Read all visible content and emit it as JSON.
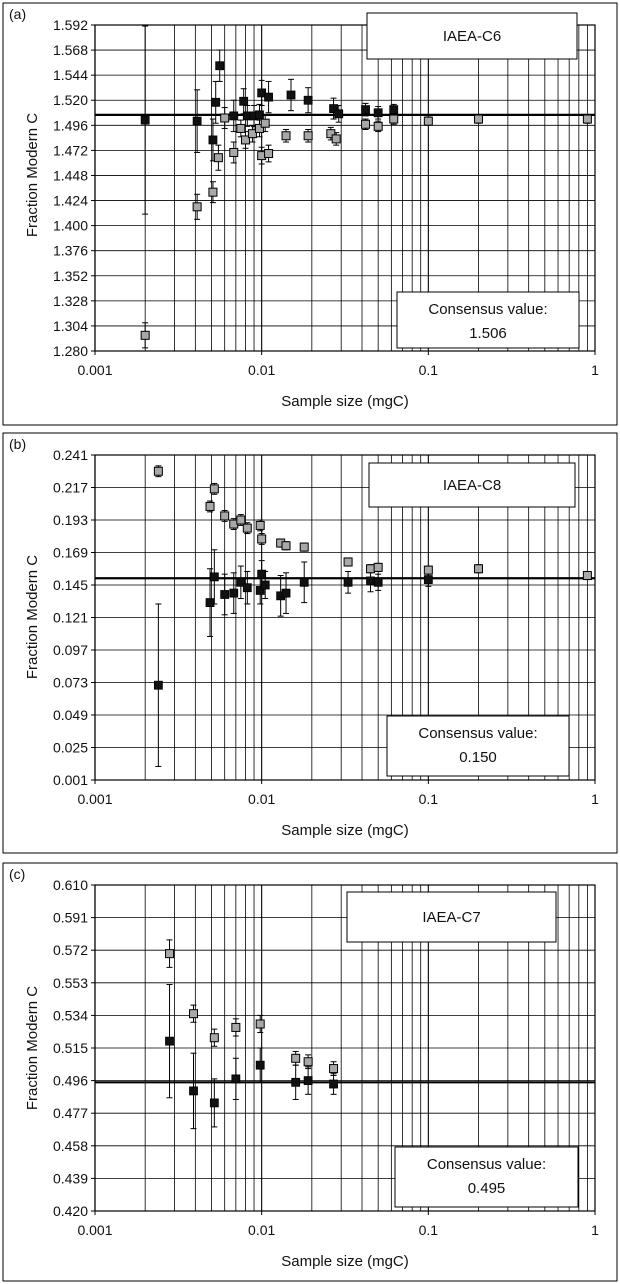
{
  "figure": {
    "colors": {
      "open_marker": "#a8a8a8",
      "filled_marker": "#111111",
      "gridline": "#000000",
      "background": "#ffffff"
    }
  },
  "chart_data": [
    {
      "type": "scatter",
      "panel_label": "(a)",
      "sample_name": "IAEA-C6",
      "consensus_label": "Consensus value:",
      "consensus_value": "1.506",
      "consensus_line": 1.506,
      "xlabel": "Sample size (mgC)",
      "ylabel": "Fraction Modern C",
      "x_scale": "log",
      "xlim": [
        0.001,
        1
      ],
      "xticks": [
        0.001,
        0.01,
        0.1,
        1
      ],
      "xtick_labels": [
        "0.001",
        "0.01",
        "0.1",
        "1"
      ],
      "ylim": [
        1.28,
        1.592
      ],
      "yticks": [
        "1.592",
        "1.568",
        "1.544",
        "1.520",
        "1.496",
        "1.472",
        "1.448",
        "1.424",
        "1.400",
        "1.376",
        "1.352",
        "1.328",
        "1.304",
        "1.280"
      ],
      "grid": true,
      "series": [
        {
          "marker": "filled-square",
          "points": [
            {
              "x": 0.002,
              "y": 1.501,
              "err": 0.09
            },
            {
              "x": 0.0041,
              "y": 1.5,
              "err": 0.03
            },
            {
              "x": 0.0051,
              "y": 1.482,
              "err": 0.02
            },
            {
              "x": 0.0053,
              "y": 1.518,
              "err": 0.02
            },
            {
              "x": 0.0056,
              "y": 1.553,
              "err": 0.015
            },
            {
              "x": 0.0068,
              "y": 1.505,
              "err": 0.015
            },
            {
              "x": 0.0078,
              "y": 1.519,
              "err": 0.012
            },
            {
              "x": 0.0082,
              "y": 1.505,
              "err": 0.01
            },
            {
              "x": 0.009,
              "y": 1.505,
              "err": 0.01
            },
            {
              "x": 0.0097,
              "y": 1.506,
              "err": 0.01
            },
            {
              "x": 0.01,
              "y": 1.527,
              "err": 0.012
            },
            {
              "x": 0.011,
              "y": 1.523,
              "err": 0.015
            },
            {
              "x": 0.015,
              "y": 1.525,
              "err": 0.015
            },
            {
              "x": 0.019,
              "y": 1.52,
              "err": 0.012
            },
            {
              "x": 0.027,
              "y": 1.512,
              "err": 0.01
            },
            {
              "x": 0.029,
              "y": 1.507,
              "err": 0.008
            },
            {
              "x": 0.042,
              "y": 1.511,
              "err": 0.006
            },
            {
              "x": 0.05,
              "y": 1.508,
              "err": 0.006
            },
            {
              "x": 0.062,
              "y": 1.511,
              "err": 0.005
            }
          ]
        },
        {
          "marker": "open-square",
          "points": [
            {
              "x": 0.002,
              "y": 1.295,
              "err": 0.012
            },
            {
              "x": 0.0041,
              "y": 1.418,
              "err": 0.012
            },
            {
              "x": 0.0051,
              "y": 1.432,
              "err": 0.01
            },
            {
              "x": 0.0055,
              "y": 1.465,
              "err": 0.012
            },
            {
              "x": 0.006,
              "y": 1.503,
              "err": 0.01
            },
            {
              "x": 0.0068,
              "y": 1.47,
              "err": 0.01
            },
            {
              "x": 0.0075,
              "y": 1.493,
              "err": 0.008
            },
            {
              "x": 0.008,
              "y": 1.482,
              "err": 0.008
            },
            {
              "x": 0.0088,
              "y": 1.488,
              "err": 0.008
            },
            {
              "x": 0.0097,
              "y": 1.493,
              "err": 0.008
            },
            {
              "x": 0.01,
              "y": 1.467,
              "err": 0.008
            },
            {
              "x": 0.0105,
              "y": 1.498,
              "err": 0.008
            },
            {
              "x": 0.011,
              "y": 1.469,
              "err": 0.008
            },
            {
              "x": 0.014,
              "y": 1.486,
              "err": 0.006
            },
            {
              "x": 0.019,
              "y": 1.486,
              "err": 0.006
            },
            {
              "x": 0.026,
              "y": 1.488,
              "err": 0.006
            },
            {
              "x": 0.028,
              "y": 1.483,
              "err": 0.006
            },
            {
              "x": 0.042,
              "y": 1.497,
              "err": 0.005
            },
            {
              "x": 0.05,
              "y": 1.495,
              "err": 0.005
            },
            {
              "x": 0.062,
              "y": 1.502,
              "err": 0.005
            },
            {
              "x": 0.1,
              "y": 1.5,
              "err": 0.004
            },
            {
              "x": 0.2,
              "y": 1.502,
              "err": 0.004
            },
            {
              "x": 0.9,
              "y": 1.502,
              "err": 0.004
            }
          ]
        }
      ]
    },
    {
      "type": "scatter",
      "panel_label": "(b)",
      "sample_name": "IAEA-C8",
      "consensus_label": "Consensus value:",
      "consensus_value": "0.150",
      "consensus_line": 0.15,
      "xlabel": "Sample size (mgC)",
      "ylabel": "Fraction Modern C",
      "x_scale": "log",
      "xlim": [
        0.001,
        1
      ],
      "xticks": [
        0.001,
        0.01,
        0.1,
        1
      ],
      "xtick_labels": [
        "0.001",
        "0.01",
        "0.1",
        "1"
      ],
      "ylim": [
        0.001,
        0.241
      ],
      "yticks": [
        "0.241",
        "0.217",
        "0.193",
        "0.169",
        "0.145",
        "0.121",
        "0.097",
        "0.073",
        "0.049",
        "0.025",
        "0.001"
      ],
      "grid": true,
      "series": [
        {
          "marker": "filled-square",
          "points": [
            {
              "x": 0.0024,
              "y": 0.071,
              "err": 0.06
            },
            {
              "x": 0.0049,
              "y": 0.132,
              "err": 0.025
            },
            {
              "x": 0.0052,
              "y": 0.151,
              "err": 0.02
            },
            {
              "x": 0.006,
              "y": 0.138,
              "err": 0.015
            },
            {
              "x": 0.0068,
              "y": 0.139,
              "err": 0.015
            },
            {
              "x": 0.0075,
              "y": 0.147,
              "err": 0.012
            },
            {
              "x": 0.0082,
              "y": 0.143,
              "err": 0.012
            },
            {
              "x": 0.0098,
              "y": 0.141,
              "err": 0.01
            },
            {
              "x": 0.01,
              "y": 0.153,
              "err": 0.01
            },
            {
              "x": 0.0105,
              "y": 0.145,
              "err": 0.01
            },
            {
              "x": 0.013,
              "y": 0.137,
              "err": 0.015
            },
            {
              "x": 0.014,
              "y": 0.139,
              "err": 0.015
            },
            {
              "x": 0.018,
              "y": 0.147,
              "err": 0.015
            },
            {
              "x": 0.033,
              "y": 0.147,
              "err": 0.008
            },
            {
              "x": 0.045,
              "y": 0.148,
              "err": 0.008
            },
            {
              "x": 0.05,
              "y": 0.147,
              "err": 0.006
            },
            {
              "x": 0.1,
              "y": 0.149,
              "err": 0.005
            }
          ]
        },
        {
          "marker": "open-square",
          "points": [
            {
              "x": 0.0024,
              "y": 0.229,
              "err": 0.004
            },
            {
              "x": 0.0049,
              "y": 0.203,
              "err": 0.004
            },
            {
              "x": 0.0052,
              "y": 0.216,
              "err": 0.004
            },
            {
              "x": 0.006,
              "y": 0.196,
              "err": 0.004
            },
            {
              "x": 0.0068,
              "y": 0.19,
              "err": 0.004
            },
            {
              "x": 0.0075,
              "y": 0.193,
              "err": 0.004
            },
            {
              "x": 0.0082,
              "y": 0.187,
              "err": 0.004
            },
            {
              "x": 0.0098,
              "y": 0.189,
              "err": 0.004
            },
            {
              "x": 0.01,
              "y": 0.179,
              "err": 0.004
            },
            {
              "x": 0.013,
              "y": 0.176,
              "err": 0.003
            },
            {
              "x": 0.014,
              "y": 0.174,
              "err": 0.003
            },
            {
              "x": 0.018,
              "y": 0.173,
              "err": 0.003
            },
            {
              "x": 0.033,
              "y": 0.162,
              "err": 0.003
            },
            {
              "x": 0.045,
              "y": 0.157,
              "err": 0.003
            },
            {
              "x": 0.05,
              "y": 0.158,
              "err": 0.003
            },
            {
              "x": 0.1,
              "y": 0.156,
              "err": 0.003
            },
            {
              "x": 0.2,
              "y": 0.157,
              "err": 0.003
            },
            {
              "x": 0.9,
              "y": 0.152,
              "err": 0.003
            }
          ]
        }
      ]
    },
    {
      "type": "scatter",
      "panel_label": "(c)",
      "sample_name": "IAEA-C7",
      "consensus_label": "Consensus value:",
      "consensus_value": "0.495",
      "consensus_line": 0.495,
      "xlabel": "Sample size (mgC)",
      "ylabel": "Fraction Modern C",
      "x_scale": "log",
      "xlim": [
        0.001,
        1
      ],
      "xticks": [
        0.001,
        0.01,
        0.1,
        1
      ],
      "xtick_labels": [
        "0.001",
        "0.01",
        "0.1",
        "1"
      ],
      "ylim": [
        0.42,
        0.61
      ],
      "yticks": [
        "0.610",
        "0.591",
        "0.572",
        "0.553",
        "0.534",
        "0.515",
        "0.496",
        "0.477",
        "0.458",
        "0.439",
        "0.420"
      ],
      "grid": true,
      "series": [
        {
          "marker": "filled-square",
          "points": [
            {
              "x": 0.0028,
              "y": 0.519,
              "err": 0.033
            },
            {
              "x": 0.0039,
              "y": 0.49,
              "err": 0.022
            },
            {
              "x": 0.0052,
              "y": 0.483,
              "err": 0.014
            },
            {
              "x": 0.007,
              "y": 0.497,
              "err": 0.012
            },
            {
              "x": 0.0098,
              "y": 0.505,
              "err": 0.01
            },
            {
              "x": 0.016,
              "y": 0.495,
              "err": 0.01
            },
            {
              "x": 0.019,
              "y": 0.496,
              "err": 0.008
            },
            {
              "x": 0.027,
              "y": 0.494,
              "err": 0.006
            }
          ]
        },
        {
          "marker": "open-square",
          "points": [
            {
              "x": 0.0028,
              "y": 0.57,
              "err": 0.008
            },
            {
              "x": 0.0039,
              "y": 0.535,
              "err": 0.005
            },
            {
              "x": 0.0052,
              "y": 0.521,
              "err": 0.005
            },
            {
              "x": 0.007,
              "y": 0.527,
              "err": 0.005
            },
            {
              "x": 0.0098,
              "y": 0.529,
              "err": 0.005
            },
            {
              "x": 0.016,
              "y": 0.509,
              "err": 0.004
            },
            {
              "x": 0.019,
              "y": 0.507,
              "err": 0.004
            },
            {
              "x": 0.027,
              "y": 0.503,
              "err": 0.004
            }
          ]
        }
      ]
    }
  ]
}
